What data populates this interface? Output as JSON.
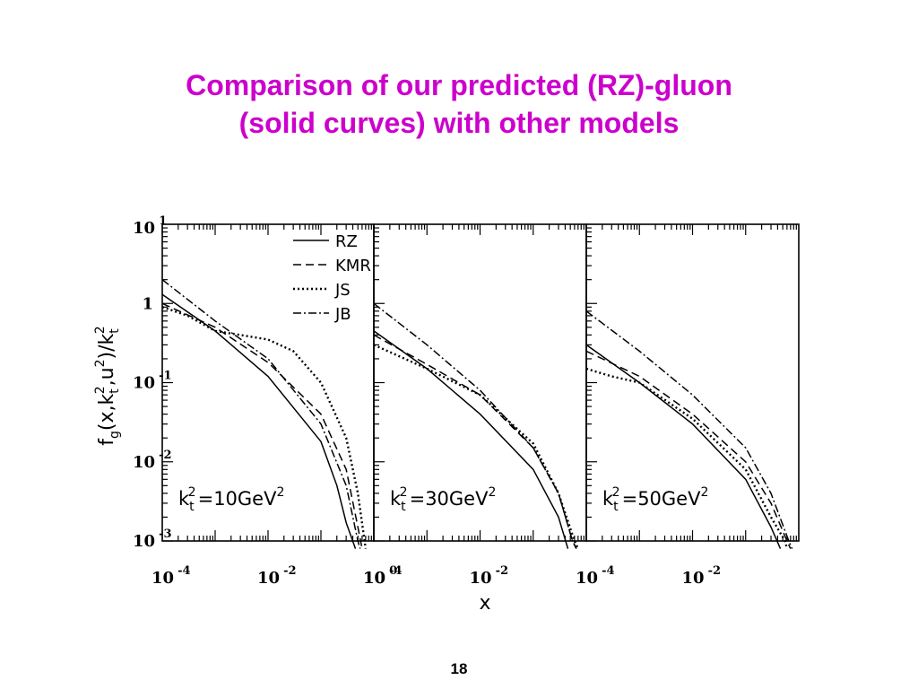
{
  "slide": {
    "title_line1": "Comparison of our predicted (RZ)-gluon",
    "title_line2": "(solid curves) with other models",
    "title_color": "#cc00cc",
    "page_number": "18"
  },
  "chart_data": {
    "type": "line",
    "title": "",
    "xlabel": "x",
    "ylabel": "f_g(x,k_t^2,u^2)/k_t^2",
    "x_scale": "log",
    "y_scale": "log",
    "xlim": [
      0.0001,
      1
    ],
    "ylim": [
      0.001,
      10
    ],
    "x_tick_labels": [
      "10^-4",
      "10^-2",
      "10^0"
    ],
    "y_tick_labels": [
      "10^1",
      "1",
      "10^-1",
      "10^-2",
      "10^-3"
    ],
    "grid": false,
    "legend_position": "top-right of first panel",
    "legend": [
      {
        "name": "RZ",
        "dash": "solid"
      },
      {
        "name": "KMR",
        "dash": "dashed"
      },
      {
        "name": "JS",
        "dash": "dotted"
      },
      {
        "name": "JB",
        "dash": "dashdot"
      }
    ],
    "panels": [
      {
        "label": "k_t^2=10GeV^2",
        "series": [
          {
            "name": "RZ",
            "x": [
              0.0001,
              0.001,
              0.01,
              0.1,
              0.2,
              0.3,
              0.45
            ],
            "y": [
              1.3,
              0.45,
              0.12,
              0.018,
              0.005,
              0.0017,
              0.0008
            ]
          },
          {
            "name": "KMR",
            "x": [
              0.0001,
              0.001,
              0.01,
              0.1,
              0.3,
              0.5,
              0.6
            ],
            "y": [
              1.0,
              0.5,
              0.18,
              0.04,
              0.008,
              0.0015,
              0.0008
            ]
          },
          {
            "name": "JS",
            "x": [
              0.0001,
              0.0003,
              0.001,
              0.003,
              0.01,
              0.03,
              0.1,
              0.3,
              0.5,
              0.7
            ],
            "y": [
              0.9,
              0.7,
              0.45,
              0.4,
              0.35,
              0.25,
              0.1,
              0.02,
              0.004,
              0.0008
            ]
          },
          {
            "name": "JB",
            "x": [
              0.0001,
              0.001,
              0.01,
              0.1,
              0.3,
              0.5,
              0.55
            ],
            "y": [
              2.0,
              0.6,
              0.2,
              0.03,
              0.005,
              0.001,
              0.0008
            ]
          }
        ]
      },
      {
        "label": "k_t^2=30GeV^2",
        "series": [
          {
            "name": "RZ",
            "x": [
              0.0001,
              0.001,
              0.01,
              0.1,
              0.3,
              0.45
            ],
            "y": [
              0.45,
              0.15,
              0.04,
              0.008,
              0.002,
              0.0008
            ]
          },
          {
            "name": "KMR",
            "x": [
              0.0001,
              0.001,
              0.01,
              0.1,
              0.3,
              0.55,
              0.65
            ],
            "y": [
              0.4,
              0.17,
              0.07,
              0.015,
              0.004,
              0.001,
              0.0008
            ]
          },
          {
            "name": "JS",
            "x": [
              0.0001,
              0.001,
              0.01,
              0.1,
              0.3,
              0.6,
              0.7
            ],
            "y": [
              0.3,
              0.15,
              0.07,
              0.017,
              0.004,
              0.001,
              0.0008
            ]
          },
          {
            "name": "JB",
            "x": [
              0.0001,
              0.001,
              0.01,
              0.1,
              0.3,
              0.55,
              0.65
            ],
            "y": [
              1.0,
              0.3,
              0.08,
              0.015,
              0.004,
              0.001,
              0.0008
            ]
          }
        ]
      },
      {
        "label": "k_t^2=50GeV^2",
        "series": [
          {
            "name": "RZ",
            "x": [
              0.0001,
              0.001,
              0.01,
              0.1,
              0.3,
              0.45
            ],
            "y": [
              0.3,
              0.1,
              0.03,
              0.006,
              0.0015,
              0.0008
            ]
          },
          {
            "name": "KMR",
            "x": [
              0.0001,
              0.001,
              0.01,
              0.1,
              0.3,
              0.6,
              0.7
            ],
            "y": [
              0.25,
              0.12,
              0.04,
              0.01,
              0.003,
              0.001,
              0.0008
            ]
          },
          {
            "name": "JS",
            "x": [
              0.0001,
              0.0003,
              0.001,
              0.01,
              0.1,
              0.3,
              0.55,
              0.6
            ],
            "y": [
              0.15,
              0.12,
              0.1,
              0.035,
              0.008,
              0.002,
              0.001,
              0.0008
            ]
          },
          {
            "name": "JB",
            "x": [
              0.0001,
              0.001,
              0.01,
              0.1,
              0.3,
              0.65,
              0.75
            ],
            "y": [
              0.8,
              0.25,
              0.07,
              0.015,
              0.004,
              0.001,
              0.0008
            ]
          }
        ]
      }
    ]
  }
}
